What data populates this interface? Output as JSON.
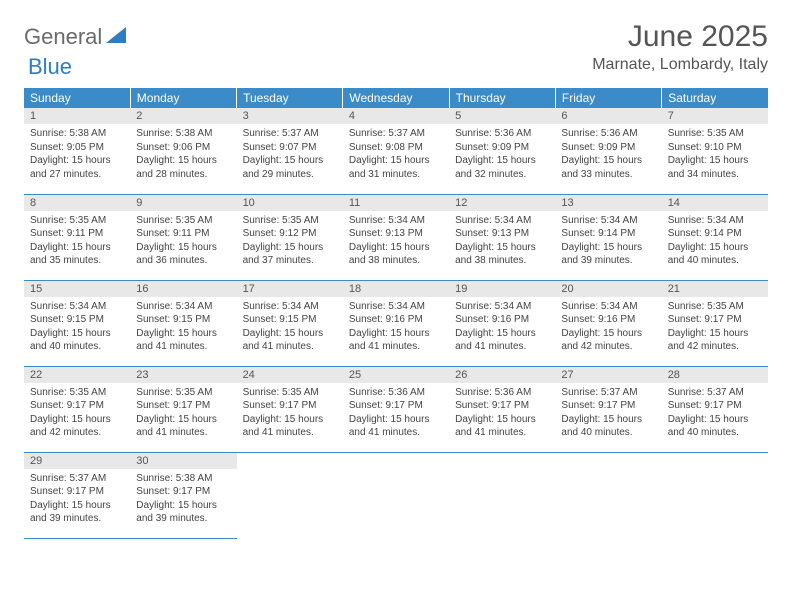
{
  "logo": {
    "text1": "General",
    "text2": "Blue",
    "triangle_color": "#2f7cc0"
  },
  "title": "June 2025",
  "location": "Marnate, Lombardy, Italy",
  "colors": {
    "header_bg": "#3b8bc8",
    "header_text": "#ffffff",
    "daynum_bg": "#e8e8e8",
    "border": "#3b8bc8"
  },
  "weekdays": [
    "Sunday",
    "Monday",
    "Tuesday",
    "Wednesday",
    "Thursday",
    "Friday",
    "Saturday"
  ],
  "weeks": [
    [
      {
        "n": "1",
        "sunrise": "5:38 AM",
        "sunset": "9:05 PM",
        "daylight": "15 hours and 27 minutes."
      },
      {
        "n": "2",
        "sunrise": "5:38 AM",
        "sunset": "9:06 PM",
        "daylight": "15 hours and 28 minutes."
      },
      {
        "n": "3",
        "sunrise": "5:37 AM",
        "sunset": "9:07 PM",
        "daylight": "15 hours and 29 minutes."
      },
      {
        "n": "4",
        "sunrise": "5:37 AM",
        "sunset": "9:08 PM",
        "daylight": "15 hours and 31 minutes."
      },
      {
        "n": "5",
        "sunrise": "5:36 AM",
        "sunset": "9:09 PM",
        "daylight": "15 hours and 32 minutes."
      },
      {
        "n": "6",
        "sunrise": "5:36 AM",
        "sunset": "9:09 PM",
        "daylight": "15 hours and 33 minutes."
      },
      {
        "n": "7",
        "sunrise": "5:35 AM",
        "sunset": "9:10 PM",
        "daylight": "15 hours and 34 minutes."
      }
    ],
    [
      {
        "n": "8",
        "sunrise": "5:35 AM",
        "sunset": "9:11 PM",
        "daylight": "15 hours and 35 minutes."
      },
      {
        "n": "9",
        "sunrise": "5:35 AM",
        "sunset": "9:11 PM",
        "daylight": "15 hours and 36 minutes."
      },
      {
        "n": "10",
        "sunrise": "5:35 AM",
        "sunset": "9:12 PM",
        "daylight": "15 hours and 37 minutes."
      },
      {
        "n": "11",
        "sunrise": "5:34 AM",
        "sunset": "9:13 PM",
        "daylight": "15 hours and 38 minutes."
      },
      {
        "n": "12",
        "sunrise": "5:34 AM",
        "sunset": "9:13 PM",
        "daylight": "15 hours and 38 minutes."
      },
      {
        "n": "13",
        "sunrise": "5:34 AM",
        "sunset": "9:14 PM",
        "daylight": "15 hours and 39 minutes."
      },
      {
        "n": "14",
        "sunrise": "5:34 AM",
        "sunset": "9:14 PM",
        "daylight": "15 hours and 40 minutes."
      }
    ],
    [
      {
        "n": "15",
        "sunrise": "5:34 AM",
        "sunset": "9:15 PM",
        "daylight": "15 hours and 40 minutes."
      },
      {
        "n": "16",
        "sunrise": "5:34 AM",
        "sunset": "9:15 PM",
        "daylight": "15 hours and 41 minutes."
      },
      {
        "n": "17",
        "sunrise": "5:34 AM",
        "sunset": "9:15 PM",
        "daylight": "15 hours and 41 minutes."
      },
      {
        "n": "18",
        "sunrise": "5:34 AM",
        "sunset": "9:16 PM",
        "daylight": "15 hours and 41 minutes."
      },
      {
        "n": "19",
        "sunrise": "5:34 AM",
        "sunset": "9:16 PM",
        "daylight": "15 hours and 41 minutes."
      },
      {
        "n": "20",
        "sunrise": "5:34 AM",
        "sunset": "9:16 PM",
        "daylight": "15 hours and 42 minutes."
      },
      {
        "n": "21",
        "sunrise": "5:35 AM",
        "sunset": "9:17 PM",
        "daylight": "15 hours and 42 minutes."
      }
    ],
    [
      {
        "n": "22",
        "sunrise": "5:35 AM",
        "sunset": "9:17 PM",
        "daylight": "15 hours and 42 minutes."
      },
      {
        "n": "23",
        "sunrise": "5:35 AM",
        "sunset": "9:17 PM",
        "daylight": "15 hours and 41 minutes."
      },
      {
        "n": "24",
        "sunrise": "5:35 AM",
        "sunset": "9:17 PM",
        "daylight": "15 hours and 41 minutes."
      },
      {
        "n": "25",
        "sunrise": "5:36 AM",
        "sunset": "9:17 PM",
        "daylight": "15 hours and 41 minutes."
      },
      {
        "n": "26",
        "sunrise": "5:36 AM",
        "sunset": "9:17 PM",
        "daylight": "15 hours and 41 minutes."
      },
      {
        "n": "27",
        "sunrise": "5:37 AM",
        "sunset": "9:17 PM",
        "daylight": "15 hours and 40 minutes."
      },
      {
        "n": "28",
        "sunrise": "5:37 AM",
        "sunset": "9:17 PM",
        "daylight": "15 hours and 40 minutes."
      }
    ],
    [
      {
        "n": "29",
        "sunrise": "5:37 AM",
        "sunset": "9:17 PM",
        "daylight": "15 hours and 39 minutes."
      },
      {
        "n": "30",
        "sunrise": "5:38 AM",
        "sunset": "9:17 PM",
        "daylight": "15 hours and 39 minutes."
      },
      null,
      null,
      null,
      null,
      null
    ]
  ],
  "labels": {
    "sunrise": "Sunrise:",
    "sunset": "Sunset:",
    "daylight": "Daylight:"
  }
}
